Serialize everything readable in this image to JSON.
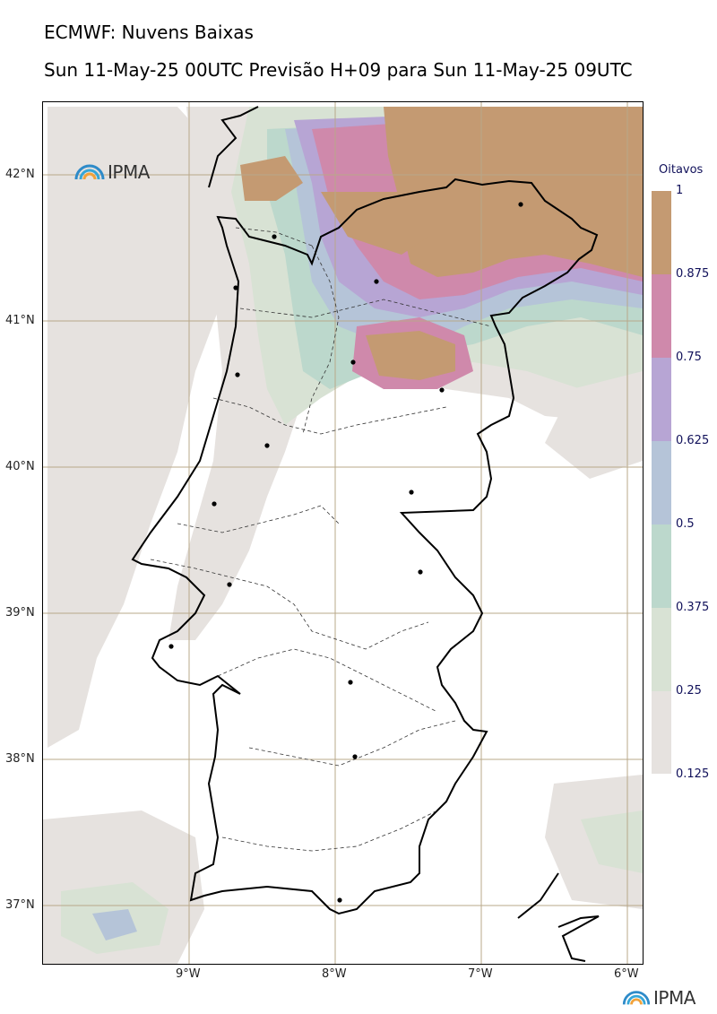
{
  "header": {
    "title": "ECMWF: Nuvens Baixas",
    "subtitle": "Sun 11-May-25 00UTC Previsão H+09 para Sun 11-May-25 09UTC"
  },
  "map": {
    "region": "Portugal continental",
    "lat_labels": [
      "42°N",
      "41°N",
      "40°N",
      "39°N",
      "38°N",
      "37°N"
    ],
    "lon_labels": [
      "9°W",
      "8°W",
      "7°W",
      "6°W"
    ],
    "grid_color": "#b8a88a",
    "coast_color": "#000000",
    "logo_text": "IPMA"
  },
  "legend": {
    "title": "Oitavos",
    "labels": [
      "1",
      "0.875",
      "0.75",
      "0.625",
      "0.5",
      "0.375",
      "0.25",
      "0.125"
    ],
    "colors": [
      "#c49a72",
      "#cf89ab",
      "#b7a5d4",
      "#b5c4d8",
      "#bcd8cc",
      "#d8e2d4",
      "#e6e2df"
    ]
  },
  "footer": {
    "logo_text": "IPMA"
  }
}
